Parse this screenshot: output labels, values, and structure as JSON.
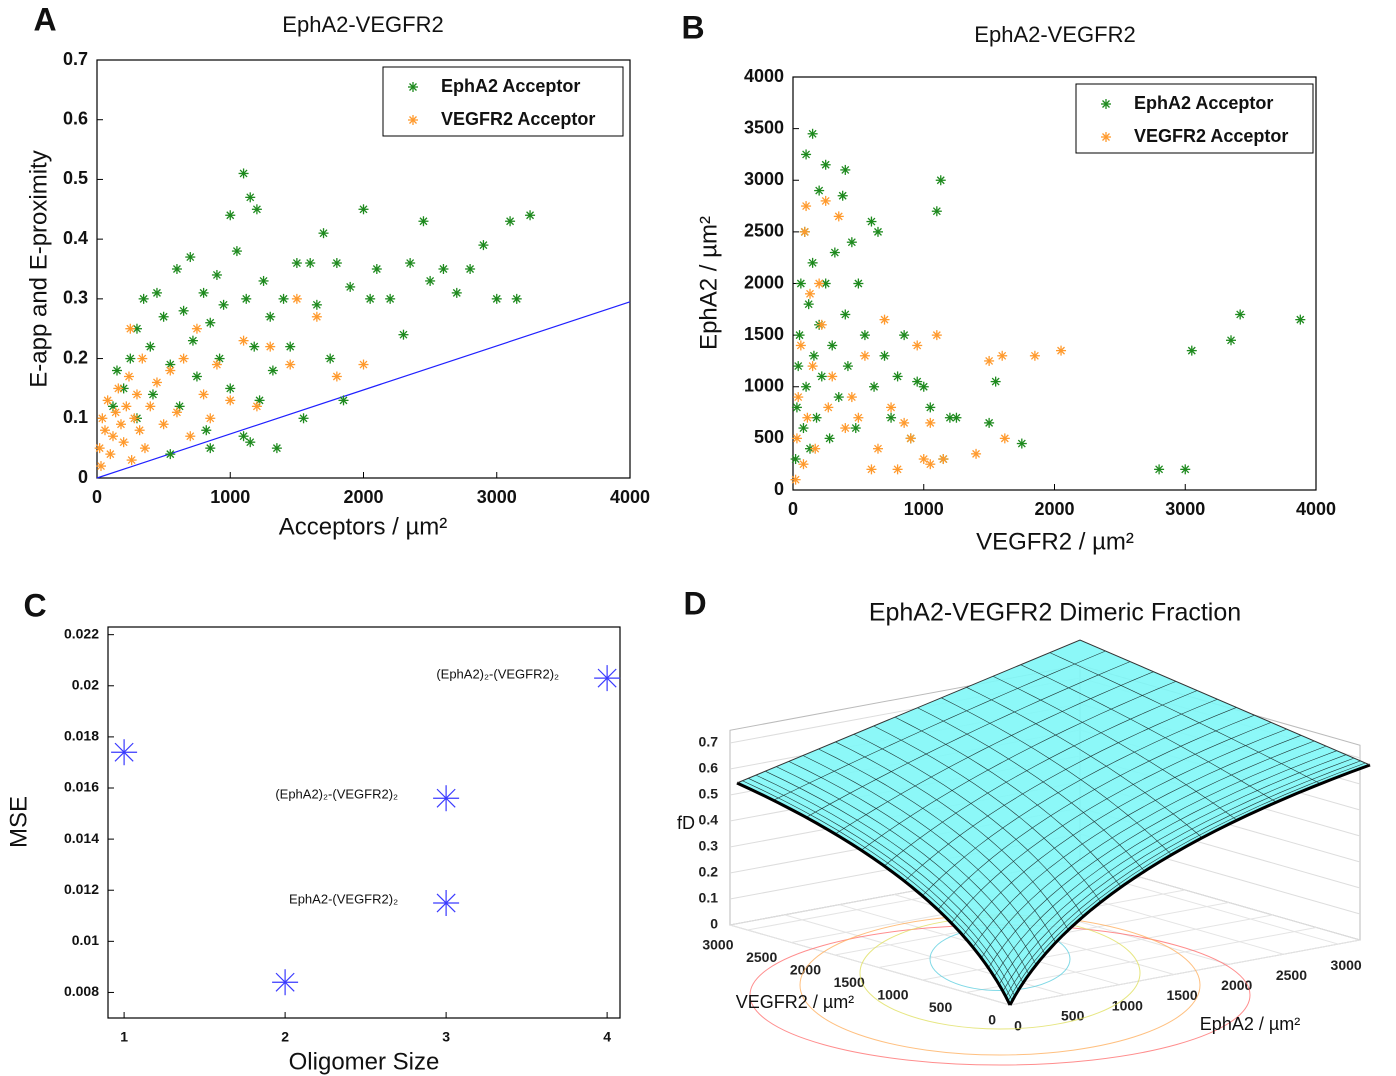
{
  "chart_data": [
    {
      "type": "scatter",
      "panel_label": "A",
      "title": "EphA2-VEGFR2",
      "xlabel": "Acceptors / µm²",
      "ylabel": "E-app and E-proximity",
      "xlim": [
        0,
        4000
      ],
      "xticks": [
        0,
        1000,
        2000,
        3000,
        4000
      ],
      "ylim": [
        0,
        0.7
      ],
      "yticks": [
        0,
        0.1,
        0.2,
        0.3,
        0.4,
        0.5,
        0.6,
        0.7
      ],
      "legend": "upper right",
      "series": [
        {
          "name": "EphA2 Acceptor",
          "color": "#1e8a1e",
          "x": [
            120,
            150,
            200,
            250,
            300,
            300,
            350,
            400,
            420,
            450,
            500,
            550,
            600,
            620,
            650,
            700,
            720,
            750,
            800,
            820,
            850,
            900,
            920,
            950,
            1000,
            1000,
            1050,
            1100,
            1120,
            1150,
            1180,
            1200,
            1220,
            1250,
            1300,
            1320,
            1400,
            1450,
            1500,
            1550,
            1600,
            1650,
            1700,
            1750,
            1800,
            1850,
            1900,
            2000,
            2050,
            2100,
            2200,
            2300,
            2350,
            2450,
            2500,
            2600,
            2700,
            2800,
            2900,
            3000,
            3100,
            3150,
            3250,
            850,
            1150,
            550,
            1350,
            1100
          ],
          "values": [
            0.12,
            0.18,
            0.15,
            0.2,
            0.25,
            0.1,
            0.3,
            0.22,
            0.14,
            0.31,
            0.27,
            0.19,
            0.35,
            0.12,
            0.28,
            0.37,
            0.23,
            0.17,
            0.31,
            0.08,
            0.26,
            0.34,
            0.2,
            0.29,
            0.44,
            0.15,
            0.38,
            0.51,
            0.3,
            0.47,
            0.22,
            0.45,
            0.13,
            0.33,
            0.27,
            0.18,
            0.3,
            0.22,
            0.36,
            0.1,
            0.36,
            0.29,
            0.41,
            0.2,
            0.36,
            0.13,
            0.32,
            0.45,
            0.3,
            0.35,
            0.3,
            0.24,
            0.36,
            0.43,
            0.33,
            0.35,
            0.31,
            0.35,
            0.39,
            0.3,
            0.43,
            0.3,
            0.44,
            0.05,
            0.06,
            0.04,
            0.05,
            0.07
          ]
        },
        {
          "name": "VEGFR2 Acceptor",
          "color": "#ff9a2e",
          "x": [
            20,
            40,
            60,
            80,
            100,
            120,
            140,
            160,
            180,
            200,
            220,
            240,
            260,
            280,
            300,
            320,
            340,
            360,
            400,
            450,
            500,
            550,
            600,
            650,
            700,
            750,
            800,
            850,
            900,
            1000,
            1100,
            1200,
            1300,
            1450,
            1500,
            1650,
            1800,
            2000,
            250,
            30
          ],
          "values": [
            0.05,
            0.1,
            0.08,
            0.13,
            0.04,
            0.07,
            0.11,
            0.15,
            0.09,
            0.06,
            0.12,
            0.17,
            0.03,
            0.1,
            0.14,
            0.08,
            0.2,
            0.05,
            0.12,
            0.16,
            0.09,
            0.18,
            0.11,
            0.2,
            0.07,
            0.25,
            0.14,
            0.1,
            0.19,
            0.13,
            0.23,
            0.12,
            0.22,
            0.19,
            0.3,
            0.27,
            0.17,
            0.19,
            0.25,
            0.02
          ]
        }
      ],
      "fit_line": {
        "color": "#2020ff",
        "x": [
          0,
          4000
        ],
        "values": [
          0,
          0.295
        ]
      }
    },
    {
      "type": "scatter",
      "panel_label": "B",
      "title": "EphA2-VEGFR2",
      "xlabel": "VEGFR2 / µm²",
      "ylabel": "EphA2 / µm²",
      "xlim": [
        0,
        4000
      ],
      "xticks": [
        0,
        1000,
        2000,
        3000,
        4000
      ],
      "ylim": [
        0,
        4000
      ],
      "yticks": [
        0,
        500,
        1000,
        1500,
        2000,
        2500,
        3000,
        3500,
        4000
      ],
      "legend": "upper right",
      "series": [
        {
          "name": "EphA2 Acceptor",
          "color": "#1e8a1e",
          "x": [
            20,
            30,
            40,
            50,
            60,
            80,
            90,
            100,
            100,
            120,
            130,
            150,
            150,
            160,
            180,
            200,
            200,
            220,
            250,
            250,
            280,
            300,
            320,
            350,
            380,
            400,
            400,
            420,
            450,
            480,
            500,
            550,
            600,
            620,
            650,
            700,
            750,
            800,
            850,
            900,
            1000,
            1050,
            1100,
            1130,
            1150,
            1200,
            1500,
            1550,
            1750,
            2800,
            3000,
            3050,
            3350,
            3420,
            3880,
            1250,
            950
          ],
          "values": [
            300,
            800,
            1200,
            1500,
            2000,
            600,
            2500,
            3250,
            1000,
            1800,
            400,
            3450,
            2200,
            1300,
            700,
            2900,
            1600,
            1100,
            3150,
            2000,
            500,
            1400,
            2300,
            900,
            2850,
            3100,
            1700,
            1200,
            2400,
            600,
            2000,
            1500,
            2600,
            1000,
            2500,
            1300,
            700,
            1100,
            1500,
            500,
            1000,
            800,
            2700,
            3000,
            300,
            700,
            650,
            1050,
            450,
            200,
            200,
            1350,
            1450,
            1700,
            1650,
            700,
            1050
          ]
        },
        {
          "name": "VEGFR2 Acceptor",
          "color": "#ff9a2e",
          "x": [
            20,
            30,
            40,
            60,
            80,
            90,
            100,
            110,
            130,
            150,
            170,
            200,
            220,
            250,
            270,
            300,
            350,
            400,
            450,
            500,
            550,
            600,
            650,
            700,
            750,
            800,
            850,
            900,
            950,
            1000,
            1050,
            1100,
            1150,
            1400,
            1500,
            1600,
            1620,
            1850,
            2050,
            1050
          ],
          "values": [
            100,
            500,
            900,
            1400,
            250,
            2500,
            2750,
            700,
            1900,
            1200,
            400,
            2000,
            1600,
            2800,
            800,
            1100,
            2650,
            600,
            900,
            700,
            1300,
            200,
            400,
            1650,
            800,
            200,
            650,
            500,
            1400,
            300,
            650,
            1500,
            300,
            350,
            1250,
            1300,
            500,
            1300,
            1350,
            250
          ]
        }
      ]
    },
    {
      "type": "scatter",
      "panel_label": "C",
      "xlabel": "Oligomer Size",
      "ylabel": "MSE",
      "xlim": [
        0.9,
        4.08
      ],
      "xticks": [
        1,
        2,
        3,
        4
      ],
      "ylim": [
        0.007,
        0.0223
      ],
      "yticks": [
        0.008,
        0.01,
        0.012,
        0.014,
        0.016,
        0.018,
        0.02,
        0.022
      ],
      "series": [
        {
          "color": "#3a3aff",
          "x": [
            1,
            2,
            3,
            3,
            4
          ],
          "values": [
            0.0174,
            0.0084,
            0.0156,
            0.0115,
            0.0203
          ]
        }
      ],
      "annotations": [
        "(EphA2)₂-(VEGFR2)₂",
        "(EphA2)₂-(VEGFR2)₂",
        "EphA2-(VEGFR2)₂"
      ]
    },
    {
      "type": "surface",
      "panel_label": "D",
      "title": "EphA2-VEGFR2 Dimeric Fraction",
      "xlabel": "EphA2 / µm²",
      "ylabel": "VEGFR2 / µm²",
      "zlabel": "fD",
      "xlim": [
        0,
        3200
      ],
      "xticks": [
        0,
        500,
        1000,
        1500,
        2000,
        2500,
        3000
      ],
      "ylim": [
        0,
        3200
      ],
      "yticks": [
        0,
        500,
        1000,
        1500,
        2000,
        2500,
        3000
      ],
      "zlim": [
        0,
        0.7
      ],
      "zticks": [
        0,
        0.1,
        0.2,
        0.3,
        0.4,
        0.5,
        0.6,
        0.7
      ]
    }
  ]
}
